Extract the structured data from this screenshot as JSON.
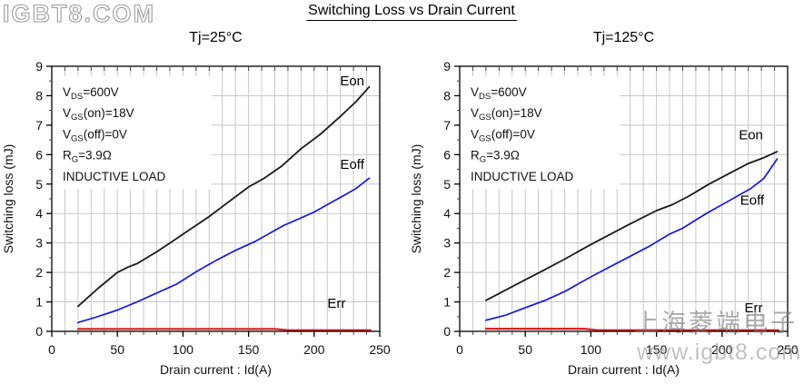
{
  "page_title": "Switching Loss vs Drain Current",
  "watermarks": {
    "top_left": "IGBT8.COM",
    "bottom_cn": "上海菱端电子",
    "bottom_site": "www.igbt8.com"
  },
  "colors": {
    "eon": "#1a1a1a",
    "eoff": "#1f1fd6",
    "err": "#dd2222",
    "grid": "#c8c8c8",
    "axis": "#000000",
    "text": "#111111"
  },
  "chart_data": [
    {
      "type": "line",
      "title": "Tj=25°C",
      "xlabel": "Drain current : Id(A)",
      "ylabel": "Switching loss (mJ)",
      "xlim": [
        0,
        250
      ],
      "ylim": [
        0,
        9
      ],
      "xticks": [
        0,
        50,
        100,
        150,
        200,
        250
      ],
      "yticks": [
        0,
        1,
        2,
        3,
        4,
        5,
        6,
        7,
        8,
        9
      ],
      "grid": {
        "x_step": 10,
        "y_step": 1,
        "x_minor_tick": 10,
        "y_minor_tick": 0.5
      },
      "conditions": [
        {
          "pre": "V",
          "sub": "DS",
          "post": "=600V"
        },
        {
          "pre": "V",
          "sub": "GS",
          "post": "(on)=18V"
        },
        {
          "pre": "V",
          "sub": "GS",
          "post": "(off)=0V"
        },
        {
          "pre": "R",
          "sub": "G",
          "post": "=3.9Ω"
        },
        {
          "pre": "INDUCTIVE LOAD",
          "sub": "",
          "post": ""
        }
      ],
      "series": [
        {
          "name": "Eon",
          "color_key": "eon",
          "label_at": [
            229,
            8.5
          ],
          "points": [
            [
              20,
              0.85
            ],
            [
              35,
              1.45
            ],
            [
              50,
              2.0
            ],
            [
              58,
              2.18
            ],
            [
              65,
              2.3
            ],
            [
              80,
              2.7
            ],
            [
              90,
              3.0
            ],
            [
              105,
              3.45
            ],
            [
              120,
              3.9
            ],
            [
              135,
              4.4
            ],
            [
              150,
              4.9
            ],
            [
              162,
              5.2
            ],
            [
              175,
              5.6
            ],
            [
              190,
              6.2
            ],
            [
              205,
              6.7
            ],
            [
              220,
              7.3
            ],
            [
              232,
              7.8
            ],
            [
              242,
              8.3
            ]
          ]
        },
        {
          "name": "Eoff",
          "color_key": "eoff",
          "label_at": [
            229,
            5.67
          ],
          "points": [
            [
              20,
              0.3
            ],
            [
              35,
              0.5
            ],
            [
              50,
              0.72
            ],
            [
              65,
              1.0
            ],
            [
              80,
              1.3
            ],
            [
              95,
              1.6
            ],
            [
              111,
              2.05
            ],
            [
              125,
              2.4
            ],
            [
              140,
              2.75
            ],
            [
              155,
              3.05
            ],
            [
              165,
              3.3
            ],
            [
              177,
              3.6
            ],
            [
              190,
              3.85
            ],
            [
              200,
              4.05
            ],
            [
              210,
              4.3
            ],
            [
              222,
              4.6
            ],
            [
              232,
              4.85
            ],
            [
              242,
              5.2
            ]
          ]
        },
        {
          "name": "Err",
          "color_key": "err",
          "label_at": [
            217,
            0.95
          ],
          "points": [
            [
              20,
              0.08
            ],
            [
              170,
              0.08
            ],
            [
              180,
              0.04
            ],
            [
              243,
              0.04
            ]
          ]
        }
      ]
    },
    {
      "type": "line",
      "title": "Tj=125°C",
      "xlabel": "Drain current : Id(A)",
      "ylabel": "Switching loss (mJ)",
      "xlim": [
        0,
        250
      ],
      "ylim": [
        0,
        9
      ],
      "xticks": [
        0,
        50,
        100,
        150,
        200,
        250
      ],
      "yticks": [
        0,
        1,
        2,
        3,
        4,
        5,
        6,
        7,
        8,
        9
      ],
      "grid": {
        "x_step": 10,
        "y_step": 1,
        "x_minor_tick": 10,
        "y_minor_tick": 0.5
      },
      "conditions": [
        {
          "pre": "V",
          "sub": "DS",
          "post": "=600V"
        },
        {
          "pre": "V",
          "sub": "GS",
          "post": "(on)=18V"
        },
        {
          "pre": "V",
          "sub": "GS",
          "post": "(off)=0V"
        },
        {
          "pre": "R",
          "sub": "G",
          "post": "=3.9Ω"
        },
        {
          "pre": "INDUCTIVE LOAD",
          "sub": "",
          "post": ""
        }
      ],
      "series": [
        {
          "name": "Eon",
          "color_key": "eon",
          "label_at": [
            222,
            6.68
          ],
          "points": [
            [
              20,
              1.05
            ],
            [
              35,
              1.4
            ],
            [
              50,
              1.75
            ],
            [
              65,
              2.1
            ],
            [
              80,
              2.45
            ],
            [
              100,
              2.95
            ],
            [
              115,
              3.3
            ],
            [
              130,
              3.65
            ],
            [
              150,
              4.1
            ],
            [
              162,
              4.3
            ],
            [
              175,
              4.6
            ],
            [
              190,
              5.0
            ],
            [
              205,
              5.35
            ],
            [
              220,
              5.7
            ],
            [
              232,
              5.9
            ],
            [
              242,
              6.1
            ]
          ]
        },
        {
          "name": "Eoff",
          "color_key": "eoff",
          "label_at": [
            223,
            4.45
          ],
          "points": [
            [
              20,
              0.38
            ],
            [
              35,
              0.55
            ],
            [
              50,
              0.8
            ],
            [
              65,
              1.05
            ],
            [
              80,
              1.35
            ],
            [
              100,
              1.85
            ],
            [
              115,
              2.2
            ],
            [
              130,
              2.55
            ],
            [
              145,
              2.9
            ],
            [
              160,
              3.3
            ],
            [
              170,
              3.5
            ],
            [
              188,
              4.0
            ],
            [
              200,
              4.3
            ],
            [
              210,
              4.55
            ],
            [
              222,
              4.85
            ],
            [
              232,
              5.2
            ],
            [
              242,
              5.85
            ]
          ]
        },
        {
          "name": "Err",
          "color_key": "err",
          "label_at": [
            224,
            0.8
          ],
          "points": [
            [
              20,
              0.09
            ],
            [
              95,
              0.09
            ],
            [
              105,
              0.04
            ],
            [
              243,
              0.04
            ]
          ]
        }
      ]
    }
  ]
}
